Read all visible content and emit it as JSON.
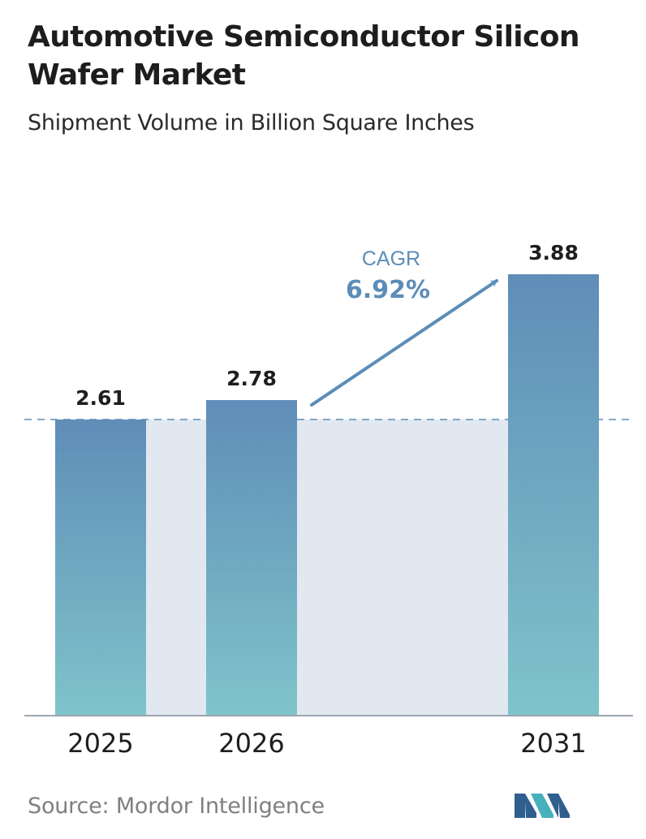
{
  "header": {
    "title": "Automotive Semiconductor Silicon Wafer Market",
    "subtitle": "Shipment Volume in Billion Square Inches"
  },
  "annotation": {
    "cagr_label": "CAGR",
    "cagr_value": "6.92%"
  },
  "footer": {
    "source": "Source:  Mordor Intelligence"
  },
  "colors": {
    "bar_top": "#5f8db8",
    "bar_bottom": "#7fc4ca",
    "band": "#e2e8f0",
    "accent": "#5b8db8",
    "axis": "#9aa6b2"
  },
  "chart_data": {
    "type": "bar",
    "categories": [
      "2025",
      "2026",
      "2031"
    ],
    "series": [
      {
        "values": [
          2.61,
          2.78,
          3.88
        ]
      }
    ],
    "data_labels": [
      "2.61",
      "2.78",
      "3.88"
    ],
    "xlabel": "",
    "ylabel": "",
    "ylim": [
      0,
      3.88
    ],
    "grid": false,
    "legend": "none",
    "reference_line": 2.61
  }
}
